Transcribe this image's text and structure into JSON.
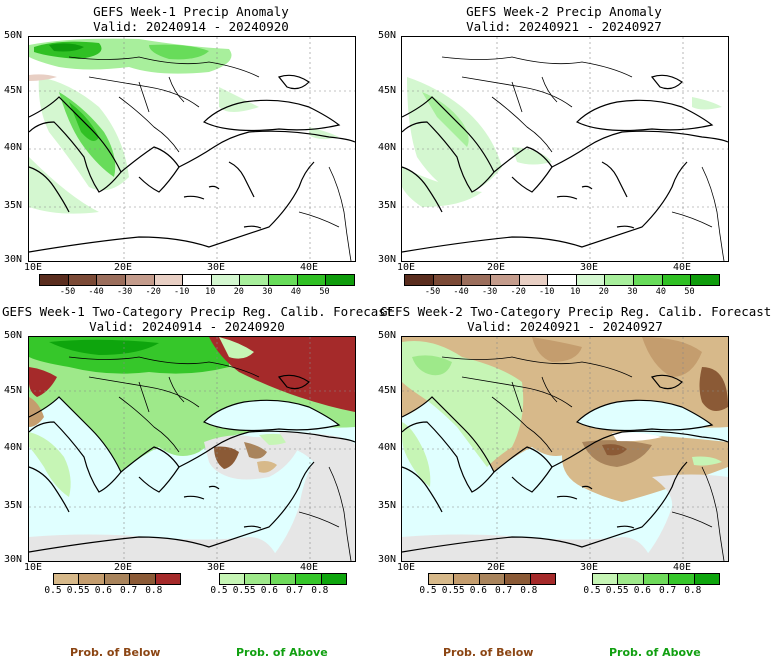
{
  "panels": {
    "w1_anom": {
      "title": "GEFS Week-1 Precip Anomaly",
      "valid": "Valid: 20240914 - 20240920"
    },
    "w2_anom": {
      "title": "GEFS Week-2 Precip Anomaly",
      "valid": "Valid: 20240921 - 20240927"
    },
    "w1_prob": {
      "title": "GEFS Week-1 Two-Category Precip Reg. Calib. Forecast",
      "valid": "Valid: 20240914 - 20240920"
    },
    "w2_prob": {
      "title": "GEFS Week-2 Two-Category Precip Reg. Calib. Forecast",
      "valid": "Valid: 20240921 - 20240927"
    }
  },
  "axes": {
    "lat_labels": [
      "50N",
      "45N",
      "40N",
      "35N",
      "30N"
    ],
    "lon_labels": [
      "10E",
      "20E",
      "30E",
      "40E"
    ]
  },
  "anomaly_scale": {
    "labels": [
      "-50",
      "-40",
      "-30",
      "-20",
      "-10",
      "10",
      "20",
      "30",
      "40",
      "50"
    ],
    "colors": [
      "#5a2d1e",
      "#7b4a36",
      "#9b6e5c",
      "#c49c8c",
      "#e8cfc4",
      "#ffffff",
      "#d4f7d0",
      "#a8ef9c",
      "#68dc5a",
      "#30c024",
      "#0f9c0c"
    ]
  },
  "prob_scale": {
    "below_labels": [
      "0.5",
      "0.55",
      "0.6",
      "0.7",
      "0.8"
    ],
    "below_colors": [
      "#d7b98a",
      "#c49d6e",
      "#a9845c",
      "#8b5a36",
      "#a52a2a"
    ],
    "above_labels": [
      "0.5",
      "0.55",
      "0.6",
      "0.7",
      "0.8"
    ],
    "above_colors": [
      "#c6f5b5",
      "#9ee98a",
      "#6fdb5b",
      "#36c72a",
      "#0ea50d"
    ],
    "below_title": "Prob. of Below",
    "above_title": "Prob. of Above",
    "colors_below_title": "#8b4513",
    "colors_above_title": "#11a011"
  }
}
